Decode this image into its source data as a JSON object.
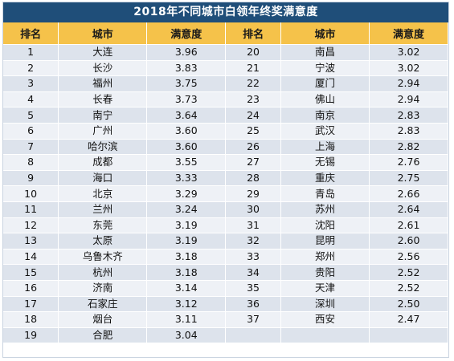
{
  "title": "2018年不同城市白领年终奖满意度",
  "headers": [
    "排名",
    "城市",
    "满意度",
    "排名",
    "城市",
    "满意度"
  ],
  "rows": [
    {
      "left": {
        "rank": "1",
        "city": "大连",
        "score": "3.96"
      },
      "right": {
        "rank": "20",
        "city": "南昌",
        "score": "3.02"
      }
    },
    {
      "left": {
        "rank": "2",
        "city": "长沙",
        "score": "3.83"
      },
      "right": {
        "rank": "21",
        "city": "宁波",
        "score": "3.02"
      }
    },
    {
      "left": {
        "rank": "3",
        "city": "福州",
        "score": "3.75"
      },
      "right": {
        "rank": "22",
        "city": "厦门",
        "score": "2.94"
      }
    },
    {
      "left": {
        "rank": "4",
        "city": "长春",
        "score": "3.73"
      },
      "right": {
        "rank": "23",
        "city": "佛山",
        "score": "2.94"
      }
    },
    {
      "left": {
        "rank": "5",
        "city": "南宁",
        "score": "3.64"
      },
      "right": {
        "rank": "24",
        "city": "南京",
        "score": "2.83"
      }
    },
    {
      "left": {
        "rank": "6",
        "city": "广州",
        "score": "3.60"
      },
      "right": {
        "rank": "25",
        "city": "武汉",
        "score": "2.83"
      }
    },
    {
      "left": {
        "rank": "7",
        "city": "哈尔滨",
        "score": "3.60"
      },
      "right": {
        "rank": "26",
        "city": "上海",
        "score": "2.82"
      }
    },
    {
      "left": {
        "rank": "8",
        "city": "成都",
        "score": "3.55"
      },
      "right": {
        "rank": "27",
        "city": "无锡",
        "score": "2.76"
      }
    },
    {
      "left": {
        "rank": "9",
        "city": "海口",
        "score": "3.33"
      },
      "right": {
        "rank": "28",
        "city": "重庆",
        "score": "2.75"
      }
    },
    {
      "left": {
        "rank": "10",
        "city": "北京",
        "score": "3.29"
      },
      "right": {
        "rank": "29",
        "city": "青岛",
        "score": "2.66"
      }
    },
    {
      "left": {
        "rank": "11",
        "city": "兰州",
        "score": "3.24"
      },
      "right": {
        "rank": "30",
        "city": "苏州",
        "score": "2.64"
      }
    },
    {
      "left": {
        "rank": "12",
        "city": "东莞",
        "score": "3.19"
      },
      "right": {
        "rank": "31",
        "city": "沈阳",
        "score": "2.61"
      }
    },
    {
      "left": {
        "rank": "13",
        "city": "太原",
        "score": "3.19"
      },
      "right": {
        "rank": "32",
        "city": "昆明",
        "score": "2.60"
      }
    },
    {
      "left": {
        "rank": "14",
        "city": "乌鲁木齐",
        "score": "3.18"
      },
      "right": {
        "rank": "33",
        "city": "郑州",
        "score": "2.56"
      }
    },
    {
      "left": {
        "rank": "15",
        "city": "杭州",
        "score": "3.18"
      },
      "right": {
        "rank": "34",
        "city": "贵阳",
        "score": "2.52"
      }
    },
    {
      "left": {
        "rank": "16",
        "city": "济南",
        "score": "3.14"
      },
      "right": {
        "rank": "35",
        "city": "天津",
        "score": "2.52"
      }
    },
    {
      "left": {
        "rank": "17",
        "city": "石家庄",
        "score": "3.12"
      },
      "right": {
        "rank": "36",
        "city": "深圳",
        "score": "2.50"
      }
    },
    {
      "left": {
        "rank": "18",
        "city": "烟台",
        "score": "3.11"
      },
      "right": {
        "rank": "37",
        "city": "西安",
        "score": "2.47"
      }
    },
    {
      "left": {
        "rank": "19",
        "city": "合肥",
        "score": "3.04"
      },
      "right": {
        "rank": "",
        "city": "",
        "score": ""
      }
    }
  ],
  "colors": {
    "title_bg": "#1f4e79",
    "header_bg": "#f5c24a",
    "row_odd": "#dde3ec",
    "row_even": "#eef1f6"
  }
}
